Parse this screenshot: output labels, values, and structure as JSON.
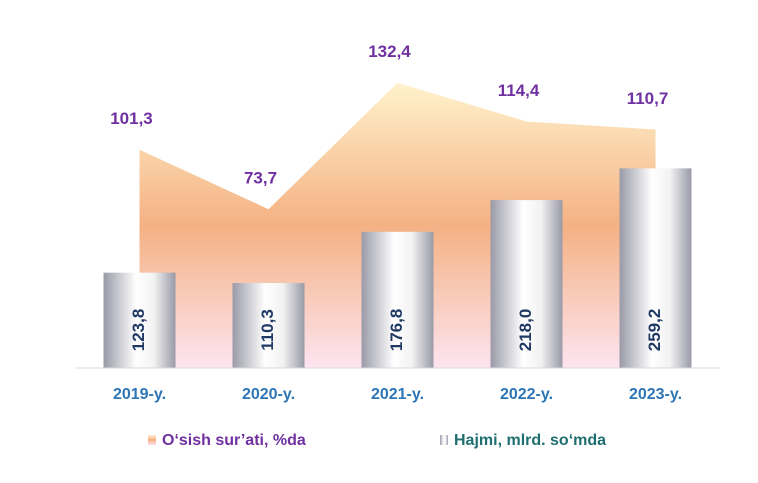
{
  "chart_data": {
    "type": "combo",
    "categories": [
      "2019-y.",
      "2020-y.",
      "2021-y.",
      "2022-y.",
      "2023-y."
    ],
    "series": [
      {
        "name": "O‘sish sur’ati, %da",
        "type": "area",
        "axis": "y2",
        "color": "#f4b183",
        "values": [
          101.3,
          73.7,
          132.4,
          114.4,
          110.7
        ],
        "value_labels": [
          "101,3",
          "73,7",
          "132,4",
          "114,4",
          "110,7"
        ]
      },
      {
        "name": "Hajmi, mlrd. so‘mda",
        "type": "bar",
        "color": "#9a9aa8",
        "values": [
          123.8,
          110.3,
          176.8,
          218.0,
          259.2
        ],
        "value_labels": [
          "123,8",
          "110,3",
          "176,8",
          "218,0",
          "259,2"
        ]
      }
    ],
    "ylim": [
      0,
      470
    ],
    "y2lim": [
      0,
      168
    ]
  }
}
